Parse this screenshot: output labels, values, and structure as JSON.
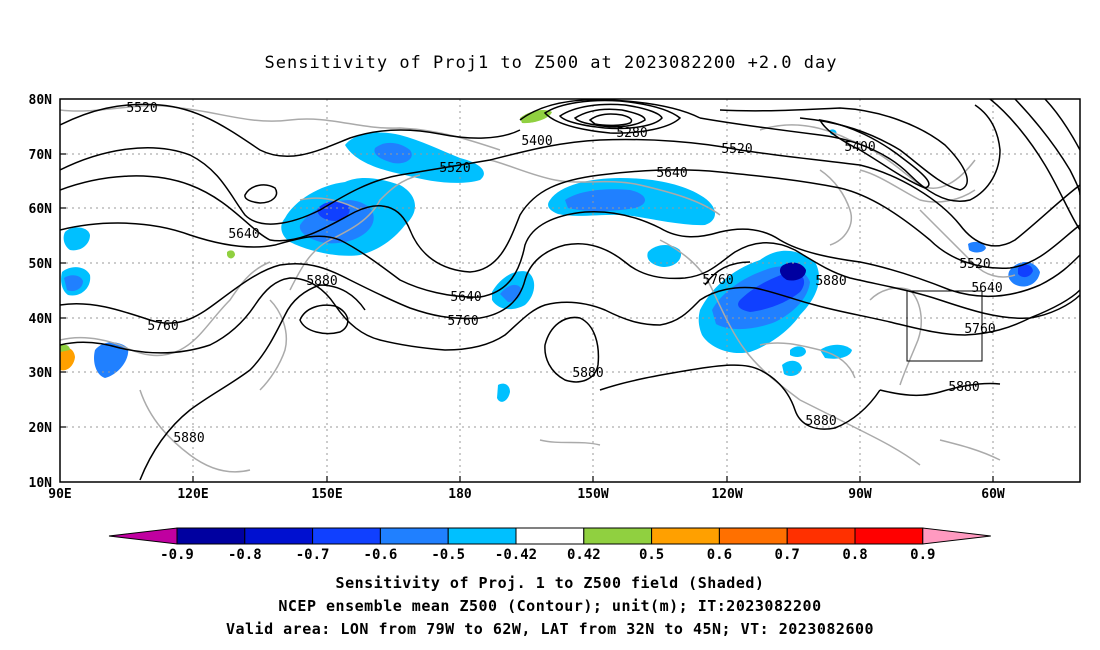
{
  "title": "Sensitivity of Proj1 to Z500 at 2023082200 +2.0 day",
  "lat_ticks": [
    "80N",
    "70N",
    "60N",
    "50N",
    "40N",
    "30N",
    "20N",
    "10N"
  ],
  "lon_ticks": [
    "90E",
    "120E",
    "150E",
    "180",
    "150W",
    "120W",
    "90W",
    "60W"
  ],
  "contour_labels": [
    "5520",
    "5400",
    "5280",
    "5520",
    "5400",
    "5520",
    "5640",
    "5640",
    "5880",
    "5640",
    "5760",
    "5760",
    "5880",
    "5760",
    "5880",
    "5520",
    "5640",
    "5760",
    "5880",
    "5880",
    "5880"
  ],
  "colorbar": {
    "labels": [
      "-0.9",
      "-0.8",
      "-0.7",
      "-0.6",
      "-0.5",
      "-0.42",
      "0.42",
      "0.5",
      "0.6",
      "0.7",
      "0.8",
      "0.9"
    ],
    "colors": [
      "#c000a0",
      "#0000a0",
      "#0010d0",
      "#1040ff",
      "#2080ff",
      "#00c0ff",
      "#ffffff",
      "#90d040",
      "#ffa000",
      "#ff7000",
      "#ff3000",
      "#ff0000",
      "#ff9ac0"
    ]
  },
  "footer": {
    "line1": "Sensitivity of Proj. 1 to Z500 field (Shaded)",
    "line2": "NCEP ensemble mean Z500 (Contour); unit(m); IT:2023082200",
    "line3": "Valid area: LON from 79W to 62W, LAT from 32N to 45N; VT: 2023082600"
  }
}
